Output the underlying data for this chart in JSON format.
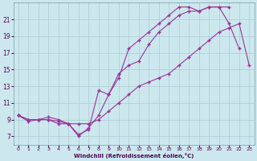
{
  "xlabel": "Windchill (Refroidissement éolien,°C)",
  "background_color": "#cce8ee",
  "grid_color": "#aacccc",
  "line_color": "#993399",
  "xlim": [
    -0.5,
    23.5
  ],
  "ylim": [
    6.0,
    23.0
  ],
  "xticks": [
    0,
    1,
    2,
    3,
    4,
    5,
    6,
    7,
    8,
    9,
    10,
    11,
    12,
    13,
    14,
    15,
    16,
    17,
    18,
    19,
    20,
    21,
    22,
    23
  ],
  "yticks": [
    7,
    9,
    11,
    13,
    15,
    17,
    19,
    21
  ],
  "x_hours": [
    0,
    1,
    2,
    3,
    4,
    5,
    6,
    7,
    8,
    9,
    10,
    11,
    12,
    13,
    14,
    15,
    16,
    17,
    18,
    19,
    20,
    21,
    22,
    23
  ],
  "line1_y": [
    9.5,
    8.8,
    9.0,
    9.3,
    9.0,
    8.5,
    8.5,
    8.5,
    9.0,
    10.0,
    11.0,
    12.0,
    13.0,
    13.5,
    14.0,
    14.5,
    15.5,
    16.5,
    17.5,
    18.5,
    19.5,
    20.0,
    20.5,
    15.5
  ],
  "line2_y": [
    9.5,
    9.0,
    9.0,
    9.0,
    8.8,
    8.5,
    7.2,
    7.8,
    12.5,
    12.0,
    14.5,
    15.5,
    16.0,
    18.0,
    19.5,
    20.5,
    21.5,
    22.0,
    22.0,
    22.5,
    22.5,
    20.5,
    17.5,
    null
  ],
  "line3_y": [
    9.5,
    9.0,
    9.0,
    9.0,
    8.5,
    8.5,
    7.0,
    8.0,
    9.5,
    12.0,
    14.0,
    17.5,
    18.5,
    19.5,
    20.5,
    21.5,
    22.5,
    22.5,
    22.0,
    22.5,
    22.5,
    22.5,
    null,
    null
  ]
}
